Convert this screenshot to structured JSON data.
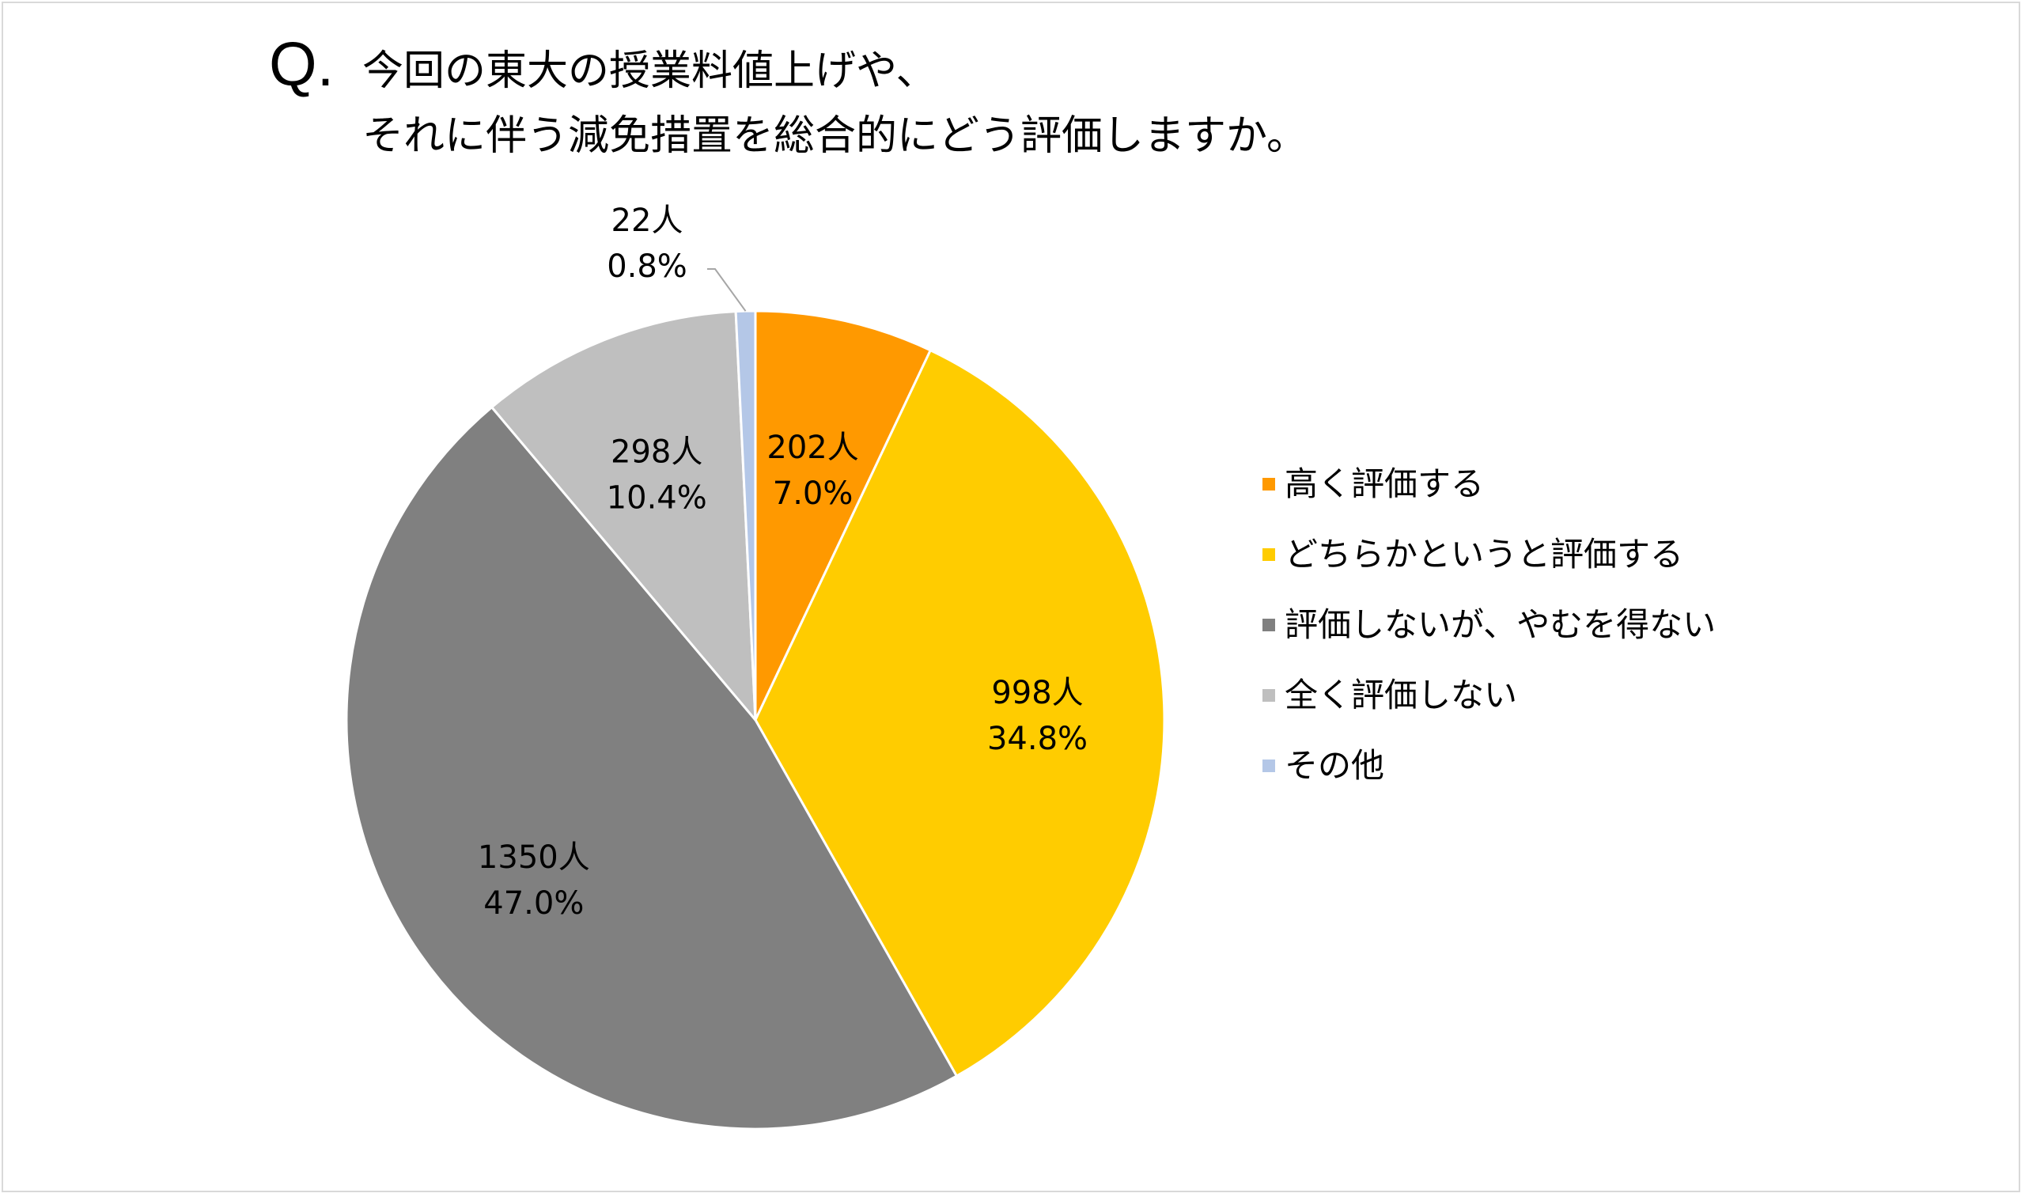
{
  "question": {
    "mark": "Q.",
    "line1": "今回の東大の授業料値上げや、",
    "line2": "それに伴う減免措置を総合的にどう評価しますか。"
  },
  "chart_data": {
    "type": "pie",
    "start_angle_deg": 0,
    "direction": "clockwise",
    "slices": [
      {
        "label": "高く評価する",
        "count_label": "202人",
        "percent_label": "7.0%",
        "value": 202,
        "percent": 7.0,
        "color": "#FF9900"
      },
      {
        "label": "どちらかというと評価する",
        "count_label": "998人",
        "percent_label": "34.8%",
        "value": 998,
        "percent": 34.8,
        "color": "#FFCC00"
      },
      {
        "label": "評価しないが、やむを得ない",
        "count_label": "1350人",
        "percent_label": "47.0%",
        "value": 1350,
        "percent": 47.0,
        "color": "#808080"
      },
      {
        "label": "全く評価しない",
        "count_label": "298人",
        "percent_label": "10.4%",
        "value": 298,
        "percent": 10.4,
        "color": "#BFBFBF"
      },
      {
        "label": "その他",
        "count_label": "22人",
        "percent_label": "0.8%",
        "value": 22,
        "percent": 0.8,
        "color": "#B4C7E7"
      }
    ],
    "legend_position": "right",
    "leader_line_slice": "その他"
  }
}
